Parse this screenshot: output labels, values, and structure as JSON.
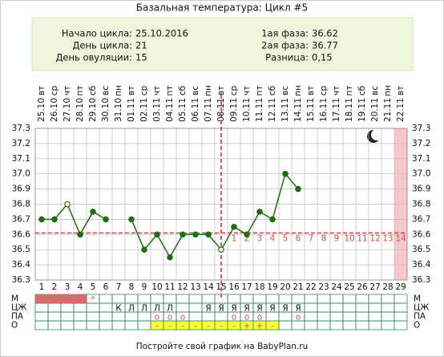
{
  "chart_data": {
    "type": "line",
    "title": "Базальная температура: Цикл #5",
    "info_left": [
      {
        "label": "Начало цикла:",
        "value": "25.10.2016"
      },
      {
        "label": "День цикла:",
        "value": "21"
      },
      {
        "label": "День овуляции:",
        "value": "15"
      }
    ],
    "info_right": [
      {
        "label": "1ая фаза:",
        "value": "36.62"
      },
      {
        "label": "2ая фаза:",
        "value": "36.77"
      },
      {
        "label": "Разница:",
        "value": "0,15"
      }
    ],
    "weekdays": [
      "вт",
      "ср",
      "чт",
      "пт",
      "сб",
      "вс",
      "пн",
      "вт",
      "ср",
      "чт",
      "пт",
      "сб",
      "вс",
      "пн",
      "вт",
      "ср",
      "чт",
      "пт",
      "сб",
      "вс",
      "пн",
      "вт",
      "ср",
      "чт",
      "пт",
      "сб",
      "вс",
      "пн",
      "вт"
    ],
    "dates": [
      "25.10",
      "26.10",
      "27.10",
      "28.10",
      "29.10",
      "30.10",
      "31.10",
      "01.11",
      "02.11",
      "03.11",
      "04.11",
      "05.11",
      "06.11",
      "07.11",
      "08.11",
      "09.11",
      "10.11",
      "11.11",
      "12.11",
      "13.11",
      "14.11",
      "15.11",
      "16.11",
      "17.11",
      "18.11",
      "19.11",
      "20.11",
      "21.11",
      "22.11"
    ],
    "x": [
      1,
      2,
      3,
      4,
      5,
      6,
      7,
      8,
      9,
      10,
      11,
      12,
      13,
      14,
      15,
      16,
      17,
      18,
      19,
      20,
      21,
      22,
      23,
      24,
      25,
      26,
      27,
      28,
      29
    ],
    "values": [
      36.7,
      36.7,
      36.8,
      36.6,
      36.75,
      36.7,
      null,
      36.7,
      36.5,
      36.6,
      36.45,
      36.6,
      36.6,
      36.6,
      36.5,
      36.65,
      36.6,
      36.75,
      36.7,
      37.0,
      36.9,
      null,
      null,
      null,
      null,
      null,
      null,
      null,
      null
    ],
    "hollow_days": [
      3,
      15
    ],
    "color": "#1f6e12",
    "coverline": 36.61,
    "ovulation_day": 15,
    "luteal_day_numbers": [
      1,
      2,
      3,
      4,
      5,
      6,
      7,
      8,
      9,
      10,
      11,
      12,
      13,
      14
    ],
    "highlight_day": 29,
    "ylim": [
      36.3,
      37.3
    ],
    "yticks": [
      37.3,
      37.2,
      37.1,
      {
        "value": 37,
        "label": "37.0"
      },
      36.9,
      36.8,
      36.7,
      36.6,
      36.5,
      36.4,
      36.3
    ],
    "grid": true,
    "menstruation_days": [
      1,
      2,
      3,
      4
    ],
    "rows": [
      {
        "label": "М",
        "cells": [
          null,
          null,
          null,
          null,
          "*",
          null,
          null,
          null,
          null,
          null,
          null,
          null,
          null,
          null,
          null,
          null,
          null,
          null,
          null,
          null,
          null,
          null,
          null,
          null,
          null,
          null,
          null,
          null,
          null
        ]
      },
      {
        "label": "ЦЖ",
        "cells": [
          null,
          null,
          null,
          null,
          null,
          null,
          "К",
          "Л",
          "Л",
          "Л",
          "Л",
          null,
          null,
          "Я",
          "Я",
          "Я",
          "Я",
          "Я",
          "Я",
          "Я",
          "Я",
          null,
          null,
          null,
          null,
          null,
          null,
          null,
          null
        ]
      },
      {
        "label": "ПА",
        "cells": [
          null,
          null,
          null,
          null,
          null,
          null,
          null,
          null,
          null,
          "о",
          "о",
          "о",
          null,
          null,
          null,
          "о",
          "о",
          "о",
          null,
          null,
          "о",
          null,
          null,
          null,
          null,
          null,
          null,
          null,
          null
        ]
      },
      {
        "label": "О",
        "cells": [
          null,
          null,
          null,
          null,
          null,
          null,
          null,
          null,
          null,
          "-",
          "-",
          "-",
          "-",
          "-",
          "-",
          "-",
          "+",
          "+",
          "-",
          null,
          null,
          null,
          null,
          null,
          null,
          null,
          null,
          null,
          null
        ]
      }
    ],
    "footer": "Постройте свой график на BabyPlan.ru"
  }
}
